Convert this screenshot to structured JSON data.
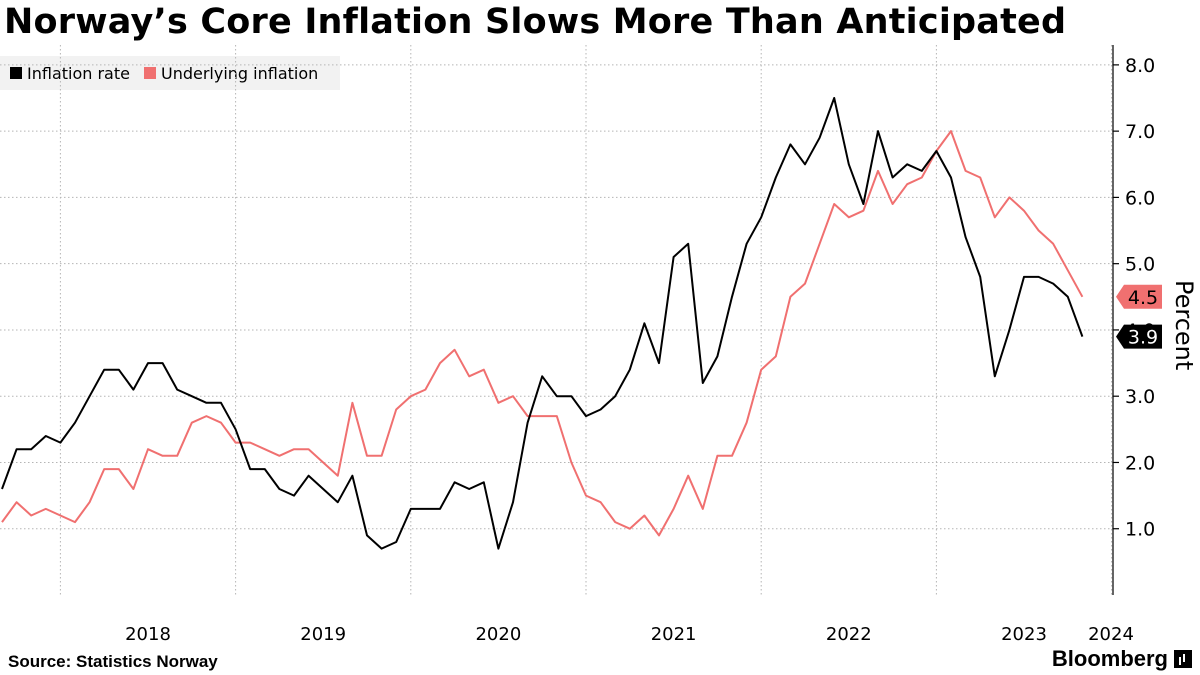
{
  "title": "Norway’s Core Inflation Slows More Than Anticipated",
  "source": "Source: Statistics Norway",
  "brand": "Bloomberg",
  "brand_icon": "bloomberg-terminal-icon",
  "colors": {
    "inflation": "#000000",
    "underlying": "#f07070",
    "grid": "#b5b5b5",
    "legend_bg": "#f2f2f2"
  },
  "chart_data": {
    "type": "line",
    "title": "Norway’s Core Inflation Slows More Than Anticipated",
    "ylabel": "Percent",
    "xlabel": "",
    "ylim": [
      0,
      8.3
    ],
    "yticks": [
      1,
      2,
      3,
      4,
      5,
      6,
      7,
      8
    ],
    "ytick_labels": [
      "1.0",
      "2.0",
      "3.0",
      "4.0",
      "5.0",
      "6.0",
      "7.0",
      "8.0"
    ],
    "x_start": "2017-09",
    "x_end": "2024-01",
    "year_labels": [
      "2018",
      "2019",
      "2020",
      "2021",
      "2022",
      "2023",
      "2024"
    ],
    "grid": true,
    "legend_position": "top-left",
    "series": [
      {
        "name": "Inflation rate",
        "color": "#000000",
        "last_value_label": "3.9",
        "values": [
          1.6,
          2.2,
          2.2,
          2.4,
          2.3,
          2.6,
          3.0,
          3.4,
          3.4,
          3.1,
          3.5,
          3.5,
          3.1,
          3.0,
          2.9,
          2.9,
          2.5,
          1.9,
          1.9,
          1.6,
          1.5,
          1.8,
          1.6,
          1.4,
          1.8,
          0.9,
          0.7,
          0.8,
          1.3,
          1.3,
          1.3,
          1.7,
          1.6,
          1.7,
          0.7,
          1.4,
          2.6,
          3.3,
          3.0,
          3.0,
          2.7,
          2.8,
          3.0,
          3.4,
          4.1,
          3.5,
          5.1,
          5.3,
          3.2,
          3.6,
          4.5,
          5.3,
          5.7,
          6.3,
          6.8,
          6.5,
          6.9,
          7.5,
          6.5,
          5.9,
          7.0,
          6.3,
          6.5,
          6.4,
          6.7,
          6.3,
          5.4,
          4.8,
          3.3,
          4.0,
          4.8,
          4.8,
          4.7,
          4.5,
          3.9
        ]
      },
      {
        "name": "Underlying inflation",
        "color": "#f07070",
        "last_value_label": "4.5",
        "values": [
          1.1,
          1.4,
          1.2,
          1.3,
          1.2,
          1.1,
          1.4,
          1.9,
          1.9,
          1.6,
          2.2,
          2.1,
          2.1,
          2.6,
          2.7,
          2.6,
          2.3,
          2.3,
          2.2,
          2.1,
          2.2,
          2.2,
          2.0,
          1.8,
          2.9,
          2.1,
          2.1,
          2.8,
          3.0,
          3.1,
          3.5,
          3.7,
          3.3,
          3.4,
          2.9,
          3.0,
          2.7,
          2.7,
          2.7,
          2.0,
          1.5,
          1.4,
          1.1,
          1.0,
          1.2,
          0.9,
          1.3,
          1.8,
          1.3,
          2.1,
          2.1,
          2.6,
          3.4,
          3.6,
          4.5,
          4.7,
          5.3,
          5.9,
          5.7,
          5.8,
          6.4,
          5.9,
          6.2,
          6.3,
          6.7,
          7.0,
          6.4,
          6.3,
          5.7,
          6.0,
          5.8,
          5.5,
          5.3,
          4.9,
          4.5
        ]
      }
    ]
  }
}
